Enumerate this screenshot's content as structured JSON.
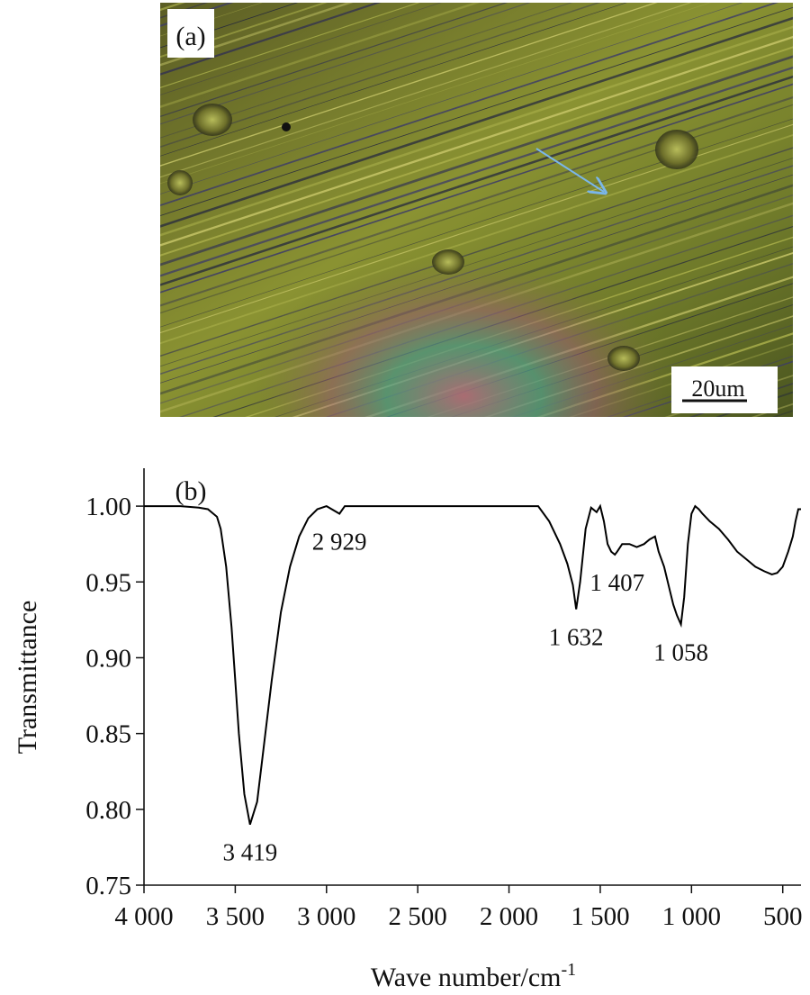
{
  "panel_a": {
    "label": "(a)",
    "scale_bar_label": "20um",
    "arrow_color": "#7ab6ea"
  },
  "chart_data": {
    "type": "line",
    "panel_label": "(b)",
    "title": "",
    "xlabel": "Wave number/cm",
    "xlabel_superscript": "-1",
    "ylabel": "Transmittance",
    "xlim": [
      4000,
      400
    ],
    "ylim": [
      0.75,
      1.025
    ],
    "x_ticks": [
      4000,
      3500,
      3000,
      2500,
      2000,
      1500,
      1000,
      500
    ],
    "x_tick_labels": [
      "4 000",
      "3 500",
      "3 000",
      "2 500",
      "2 000",
      "1 500",
      "1 000",
      "500"
    ],
    "y_ticks": [
      0.75,
      0.8,
      0.85,
      0.9,
      0.95,
      1.0
    ],
    "y_tick_labels": [
      "0.75",
      "0.80",
      "0.85",
      "0.90",
      "0.95",
      "1.00"
    ],
    "grid": false,
    "line_color": "#000000",
    "series": [
      {
        "x": [
          4000,
          3800,
          3700,
          3650,
          3600,
          3580,
          3550,
          3520,
          3500,
          3480,
          3450,
          3419,
          3380,
          3350,
          3300,
          3250,
          3200,
          3150,
          3100,
          3050,
          3000,
          2929,
          2900,
          2800,
          2600,
          2400,
          2200,
          2000,
          1900,
          1840,
          1780,
          1720,
          1680,
          1650,
          1632,
          1610,
          1580,
          1550,
          1520,
          1500,
          1480,
          1460,
          1440,
          1420,
          1407,
          1380,
          1340,
          1300,
          1260,
          1230,
          1200,
          1180,
          1150,
          1120,
          1100,
          1080,
          1058,
          1040,
          1020,
          1000,
          980,
          960,
          940,
          900,
          850,
          800,
          750,
          700,
          650,
          600,
          560,
          530,
          500,
          470,
          445,
          430,
          415,
          400
        ],
        "y": [
          1.0,
          1.0,
          0.999,
          0.998,
          0.993,
          0.985,
          0.96,
          0.92,
          0.885,
          0.85,
          0.81,
          0.79,
          0.805,
          0.835,
          0.885,
          0.93,
          0.96,
          0.98,
          0.992,
          0.998,
          1.0,
          0.995,
          1.0,
          1.0,
          1.0,
          1.0,
          1.0,
          1.0,
          1.0,
          1.0,
          0.99,
          0.975,
          0.962,
          0.948,
          0.932,
          0.95,
          0.985,
          0.999,
          0.996,
          1.0,
          0.99,
          0.975,
          0.97,
          0.968,
          0.97,
          0.975,
          0.975,
          0.973,
          0.975,
          0.978,
          0.98,
          0.97,
          0.96,
          0.945,
          0.935,
          0.928,
          0.922,
          0.94,
          0.975,
          0.995,
          1.0,
          0.998,
          0.995,
          0.99,
          0.985,
          0.978,
          0.97,
          0.965,
          0.96,
          0.957,
          0.955,
          0.956,
          0.96,
          0.97,
          0.98,
          0.99,
          0.998,
          0.998
        ]
      }
    ],
    "annotations": [
      {
        "text": "3 419",
        "x": 3419,
        "y": 0.79
      },
      {
        "text": "2 929",
        "x": 2929,
        "y": 0.995
      },
      {
        "text": "1 632",
        "x": 1632,
        "y": 0.932
      },
      {
        "text": "1 407",
        "x": 1407,
        "y": 0.968
      },
      {
        "text": "1 058",
        "x": 1058,
        "y": 0.922
      }
    ]
  }
}
